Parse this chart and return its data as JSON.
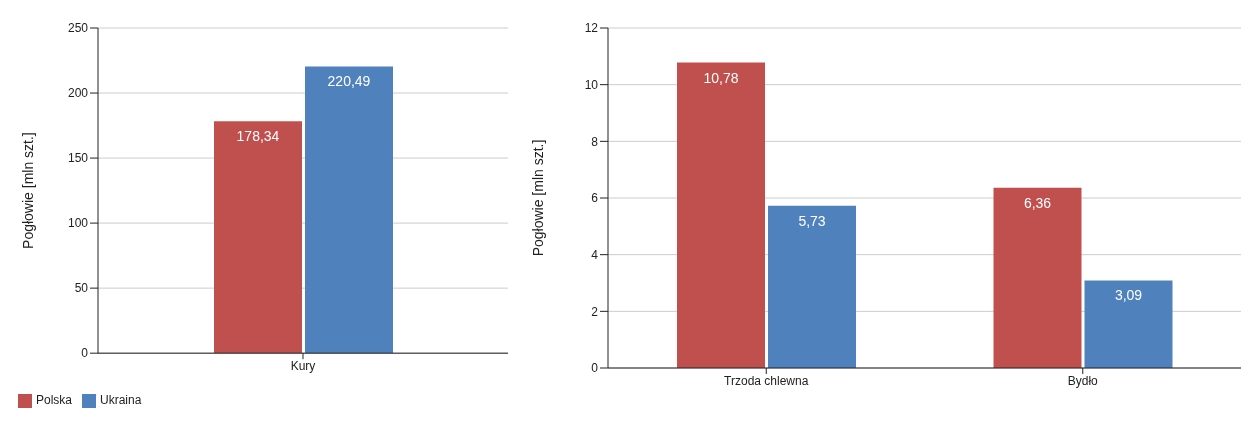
{
  "chart_data": [
    {
      "type": "bar",
      "categories": [
        "Kury"
      ],
      "ylabel": "Pogłowie [mln szt.]",
      "ylim": [
        0,
        250
      ],
      "yticks": [
        0,
        50,
        100,
        150,
        200,
        250
      ],
      "grid": "y",
      "legend": "bottom left",
      "series": [
        {
          "name": "Polska",
          "color": "#c0504d",
          "values": [
            178.34
          ],
          "value_labels": [
            "178,34"
          ]
        },
        {
          "name": "Ukraina",
          "color": "#4f81bd",
          "values": [
            220.49
          ],
          "value_labels": [
            "220,49"
          ]
        }
      ]
    },
    {
      "type": "bar",
      "categories": [
        "Trzoda chlewna",
        "Bydło"
      ],
      "ylabel": "Pogłowie [mln szt.]",
      "ylim": [
        0,
        12
      ],
      "yticks": [
        0,
        2,
        4,
        6,
        8,
        10,
        12
      ],
      "grid": "y",
      "series": [
        {
          "color": "#c0504d",
          "values": [
            10.78,
            6.36
          ],
          "value_labels": [
            "10,78",
            "6,36"
          ]
        },
        {
          "color": "#4f81bd",
          "values": [
            5.73,
            3.09
          ],
          "value_labels": [
            "5,73",
            "3,09"
          ]
        }
      ]
    }
  ]
}
